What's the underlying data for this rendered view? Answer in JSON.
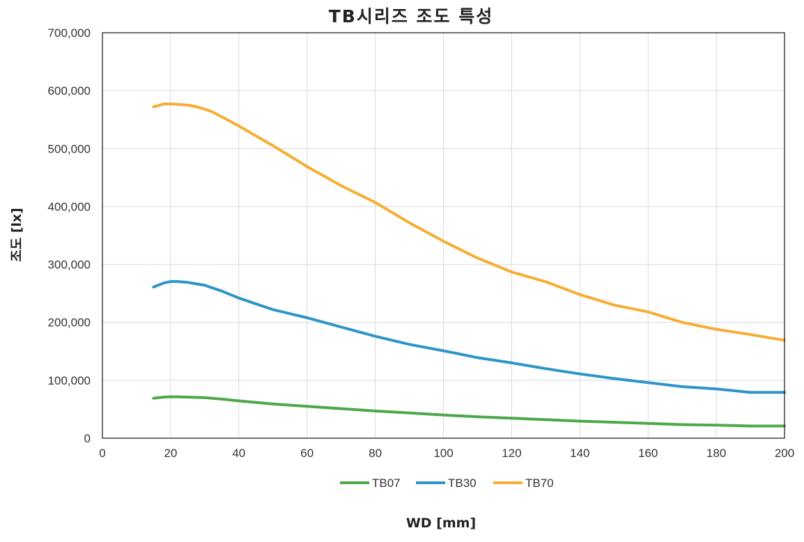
{
  "chart_data": {
    "type": "line",
    "title": "TB시리즈 조도 특성",
    "xlabel": "WD [mm]",
    "ylabel": "조도 [lx]",
    "xlim": [
      0,
      200
    ],
    "ylim": [
      0,
      700000
    ],
    "x_ticks": [
      0,
      20,
      40,
      60,
      80,
      100,
      120,
      140,
      160,
      180,
      200
    ],
    "y_ticks": [
      0,
      100000,
      200000,
      300000,
      400000,
      500000,
      600000,
      700000
    ],
    "x_tick_labels": [
      "0",
      "20",
      "40",
      "60",
      "80",
      "100",
      "120",
      "140",
      "160",
      "180",
      "200"
    ],
    "y_tick_labels": [
      "0",
      "100,000",
      "200,000",
      "300,000",
      "400,000",
      "500,000",
      "600,000",
      "700,000"
    ],
    "grid": true,
    "legend_position": "bottom",
    "x": [
      15,
      18,
      20,
      22,
      25,
      27,
      30,
      32,
      35,
      40,
      50,
      60,
      70,
      80,
      90,
      100,
      110,
      120,
      130,
      140,
      150,
      160,
      170,
      180,
      190,
      200
    ],
    "series": [
      {
        "name": "TB07",
        "color": "#4ea74b",
        "values": [
          69000,
          71000,
          71500,
          71500,
          71000,
          70500,
          70000,
          69000,
          67500,
          64500,
          59000,
          55000,
          51000,
          47000,
          43500,
          40000,
          37000,
          34500,
          32000,
          29500,
          27500,
          25500,
          23500,
          22500,
          21000,
          21000
        ]
      },
      {
        "name": "TB30",
        "color": "#2e95c8",
        "values": [
          261000,
          268000,
          270500,
          270500,
          269000,
          267000,
          264000,
          260000,
          254000,
          242000,
          222000,
          208000,
          192000,
          176000,
          162000,
          151000,
          139000,
          130000,
          120000,
          111000,
          103000,
          96000,
          89000,
          85000,
          79000,
          79000
        ]
      },
      {
        "name": "TB70",
        "color": "#f7ad33",
        "values": [
          572000,
          577000,
          577000,
          576500,
          575000,
          573000,
          568000,
          564000,
          555000,
          539000,
          505000,
          469000,
          436000,
          407000,
          372000,
          340000,
          311000,
          287000,
          270000,
          248000,
          230000,
          218000,
          200000,
          188000,
          179000,
          169000
        ]
      }
    ]
  }
}
